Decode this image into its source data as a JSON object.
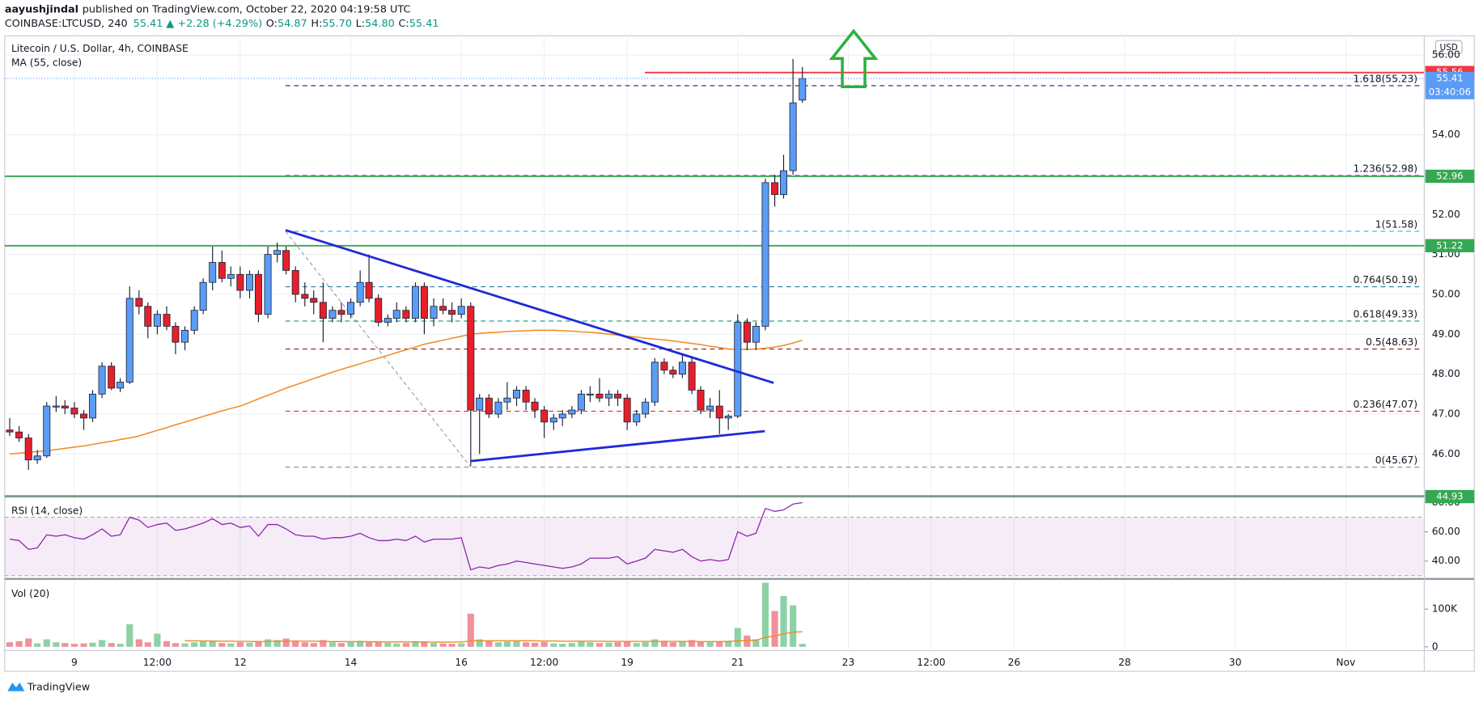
{
  "header": {
    "author": "aayushjindal",
    "published": "published on TradingView.com, October 22, 2020 04:19:58 UTC",
    "symbol": "COINBASE:LTCUSD, 240",
    "change": "55.41 ▲ +2.28 (+4.29%)",
    "ohlc": [
      "O:",
      "54.87",
      "H:",
      "55.70",
      "L:",
      "54.80",
      "C:",
      "55.41"
    ]
  },
  "footer": "TradingView",
  "chart_data": {
    "type": "candlestick",
    "title": "Litecoin / U.S. Dollar, 4h, COINBASE",
    "currency": "USD",
    "countdown": "03:40:06",
    "up_color": "#5b9cf6",
    "down_color": "#e81e2b",
    "border_color": "#1c2233",
    "grid": true,
    "xlim": [
      7.74,
      33.42
    ],
    "xticks": [
      9,
      {
        "value": 10.5,
        "label": "12:00"
      },
      12,
      14,
      16,
      {
        "value": 17.5,
        "label": "12:00"
      },
      19,
      21,
      23,
      {
        "value": 24.5,
        "label": "12:00"
      },
      26,
      28,
      30,
      {
        "value": 32,
        "label": "Nov"
      }
    ],
    "ylim": [
      44.97,
      56.48
    ],
    "yticks": [
      {
        "value": 46,
        "label": "46.00"
      },
      {
        "value": 47,
        "label": "47.00"
      },
      {
        "value": 48,
        "label": "48.00"
      },
      {
        "value": 49,
        "label": "49.00"
      },
      {
        "value": 50,
        "label": "50.00"
      },
      {
        "value": 51,
        "label": "51.00"
      },
      {
        "value": 52,
        "label": "52.00"
      },
      {
        "value": 54,
        "label": "54.00"
      },
      {
        "value": 56,
        "label": "56.00"
      }
    ],
    "x": [
      7.83,
      8,
      8.17,
      8.33,
      8.5,
      8.67,
      8.83,
      9,
      9.17,
      9.33,
      9.5,
      9.67,
      9.83,
      10,
      10.17,
      10.33,
      10.5,
      10.67,
      10.83,
      11,
      11.17,
      11.33,
      11.5,
      11.67,
      11.83,
      12,
      12.17,
      12.33,
      12.5,
      12.67,
      12.83,
      13,
      13.17,
      13.33,
      13.5,
      13.67,
      13.83,
      14,
      14.17,
      14.33,
      14.5,
      14.67,
      14.83,
      15,
      15.17,
      15.33,
      15.5,
      15.67,
      15.83,
      16,
      16.17,
      16.33,
      16.5,
      16.67,
      16.83,
      17,
      17.17,
      17.33,
      17.5,
      17.67,
      17.83,
      18,
      18.17,
      18.33,
      18.5,
      18.67,
      18.83,
      19,
      19.17,
      19.33,
      19.5,
      19.67,
      19.83,
      20,
      20.17,
      20.33,
      20.5,
      20.67,
      20.83,
      21,
      21.17,
      21.33,
      21.5,
      21.67,
      21.83,
      22,
      22.17
    ],
    "candles": [
      [
        46.6,
        46.9,
        46.45,
        46.55
      ],
      [
        46.55,
        46.7,
        46.3,
        46.4
      ],
      [
        46.4,
        46.5,
        45.6,
        45.85
      ],
      [
        45.85,
        46.1,
        45.75,
        45.95
      ],
      [
        45.95,
        47.3,
        45.9,
        47.2
      ],
      [
        47.2,
        47.45,
        47.05,
        47.2
      ],
      [
        47.2,
        47.35,
        47.0,
        47.15
      ],
      [
        47.15,
        47.3,
        46.9,
        47.0
      ],
      [
        47.0,
        47.1,
        46.6,
        46.9
      ],
      [
        46.9,
        47.6,
        46.8,
        47.5
      ],
      [
        47.5,
        48.3,
        47.4,
        48.2
      ],
      [
        48.2,
        48.3,
        47.6,
        47.65
      ],
      [
        47.65,
        47.9,
        47.55,
        47.8
      ],
      [
        47.8,
        50.2,
        47.75,
        49.9
      ],
      [
        49.9,
        50.1,
        49.5,
        49.7
      ],
      [
        49.7,
        49.8,
        48.9,
        49.2
      ],
      [
        49.2,
        49.6,
        49.0,
        49.5
      ],
      [
        49.5,
        49.7,
        49.1,
        49.2
      ],
      [
        49.2,
        49.3,
        48.5,
        48.8
      ],
      [
        48.8,
        49.2,
        48.6,
        49.1
      ],
      [
        49.1,
        49.7,
        49.0,
        49.6
      ],
      [
        49.6,
        50.4,
        49.5,
        50.3
      ],
      [
        50.3,
        51.2,
        50.1,
        50.8
      ],
      [
        50.8,
        51.1,
        50.3,
        50.4
      ],
      [
        50.4,
        50.7,
        50.2,
        50.5
      ],
      [
        50.5,
        50.7,
        49.9,
        50.1
      ],
      [
        50.1,
        50.6,
        49.9,
        50.5
      ],
      [
        50.5,
        50.6,
        49.3,
        49.5
      ],
      [
        49.5,
        51.2,
        49.4,
        51.0
      ],
      [
        51.0,
        51.3,
        50.8,
        51.1
      ],
      [
        51.1,
        51.2,
        50.5,
        50.6
      ],
      [
        50.6,
        50.7,
        49.8,
        50.0
      ],
      [
        50.0,
        50.3,
        49.7,
        49.9
      ],
      [
        49.9,
        50.1,
        49.5,
        49.8
      ],
      [
        49.8,
        50.3,
        48.8,
        49.4
      ],
      [
        49.4,
        49.7,
        49.3,
        49.6
      ],
      [
        49.6,
        49.8,
        49.3,
        49.5
      ],
      [
        49.5,
        49.9,
        49.4,
        49.8
      ],
      [
        49.8,
        50.6,
        49.7,
        50.3
      ],
      [
        50.3,
        51.0,
        49.8,
        49.9
      ],
      [
        49.9,
        50.0,
        49.2,
        49.3
      ],
      [
        49.3,
        49.5,
        49.2,
        49.4
      ],
      [
        49.4,
        49.8,
        49.3,
        49.6
      ],
      [
        49.6,
        49.7,
        49.3,
        49.4
      ],
      [
        49.4,
        50.3,
        49.3,
        50.2
      ],
      [
        50.2,
        50.3,
        49.0,
        49.4
      ],
      [
        49.4,
        49.9,
        49.2,
        49.7
      ],
      [
        49.7,
        49.9,
        49.5,
        49.6
      ],
      [
        49.6,
        49.8,
        49.3,
        49.5
      ],
      [
        49.5,
        49.9,
        49.4,
        49.7
      ],
      [
        49.7,
        49.8,
        45.7,
        47.1
      ],
      [
        47.1,
        47.5,
        46.0,
        47.4
      ],
      [
        47.4,
        47.5,
        46.9,
        47.0
      ],
      [
        47.0,
        47.4,
        46.9,
        47.3
      ],
      [
        47.3,
        47.8,
        47.1,
        47.4
      ],
      [
        47.4,
        47.7,
        47.2,
        47.6
      ],
      [
        47.6,
        47.7,
        47.1,
        47.3
      ],
      [
        47.3,
        47.4,
        46.9,
        47.1
      ],
      [
        47.1,
        47.2,
        46.4,
        46.8
      ],
      [
        46.8,
        47.0,
        46.6,
        46.9
      ],
      [
        46.9,
        47.1,
        46.7,
        47.0
      ],
      [
        47.0,
        47.2,
        46.9,
        47.1
      ],
      [
        47.1,
        47.6,
        47.0,
        47.5
      ],
      [
        47.5,
        47.7,
        47.3,
        47.5
      ],
      [
        47.5,
        47.9,
        47.3,
        47.4
      ],
      [
        47.4,
        47.6,
        47.2,
        47.5
      ],
      [
        47.5,
        47.6,
        47.2,
        47.4
      ],
      [
        47.4,
        47.5,
        46.6,
        46.8
      ],
      [
        46.8,
        47.1,
        46.7,
        47.0
      ],
      [
        47.0,
        47.4,
        46.9,
        47.3
      ],
      [
        47.3,
        48.4,
        47.2,
        48.3
      ],
      [
        48.3,
        48.4,
        48.0,
        48.1
      ],
      [
        48.1,
        48.2,
        47.9,
        48.0
      ],
      [
        48.0,
        48.5,
        47.9,
        48.3
      ],
      [
        48.3,
        48.4,
        47.5,
        47.6
      ],
      [
        47.6,
        47.7,
        47.0,
        47.1
      ],
      [
        47.1,
        47.4,
        46.9,
        47.2
      ],
      [
        47.2,
        47.6,
        46.5,
        46.9
      ],
      [
        46.9,
        47.0,
        46.6,
        46.95
      ],
      [
        46.95,
        49.5,
        46.9,
        49.3
      ],
      [
        49.3,
        49.4,
        48.6,
        48.8
      ],
      [
        48.8,
        49.3,
        48.6,
        49.2
      ],
      [
        49.2,
        52.9,
        49.1,
        52.8
      ],
      [
        52.8,
        53.0,
        52.2,
        52.5
      ],
      [
        52.5,
        53.5,
        52.4,
        53.1
      ],
      [
        53.1,
        55.9,
        53.0,
        54.8
      ],
      [
        54.87,
        55.7,
        54.8,
        55.41
      ]
    ],
    "ma": {
      "name": "MA (55, close)",
      "color": "#f08a24",
      "values": [
        46.0,
        46.02,
        46.04,
        46.06,
        46.08,
        46.11,
        46.14,
        46.17,
        46.2,
        46.24,
        46.28,
        46.32,
        46.36,
        46.4,
        46.45,
        46.52,
        46.59,
        46.66,
        46.73,
        46.8,
        46.87,
        46.94,
        47.01,
        47.08,
        47.14,
        47.2,
        47.29,
        47.38,
        47.47,
        47.56,
        47.65,
        47.73,
        47.81,
        47.89,
        47.97,
        48.05,
        48.12,
        48.19,
        48.26,
        48.33,
        48.4,
        48.47,
        48.54,
        48.61,
        48.68,
        48.75,
        48.8,
        48.85,
        48.9,
        48.95,
        49.0,
        49.02,
        49.04,
        49.05,
        49.07,
        49.08,
        49.09,
        49.1,
        49.1,
        49.1,
        49.09,
        49.08,
        49.06,
        49.05,
        49.03,
        49.0,
        48.98,
        48.95,
        48.93,
        48.9,
        48.88,
        48.86,
        48.83,
        48.8,
        48.77,
        48.74,
        48.7,
        48.67,
        48.63,
        48.62,
        48.62,
        48.63,
        48.65,
        48.68,
        48.72,
        48.78,
        48.85
      ]
    },
    "levels": [
      {
        "price": 55.56,
        "label": "55.56",
        "color": "#f23645",
        "start": 19.32
      },
      {
        "price": 52.96,
        "label": "52.96",
        "color": "#34a853"
      },
      {
        "price": 51.22,
        "label": "51.22",
        "color": "#34a853"
      },
      {
        "price": 44.93,
        "label": "44.93",
        "color": "#34a853"
      }
    ],
    "fib": {
      "x": [
        12.82,
        16.17
      ],
      "y": [
        51.58,
        45.67
      ],
      "end": 33.35,
      "levels": [
        {
          "price": 55.23,
          "label": "1.618(55.23)",
          "color": "#1a237e"
        },
        {
          "price": 52.98,
          "label": "1.236(52.98)",
          "color": "#9c27b0"
        },
        {
          "price": 51.58,
          "label": "1(51.58)",
          "color": "#4fb3e8"
        },
        {
          "price": 50.19,
          "label": "0.764(50.19)",
          "color": "#1f7fb0"
        },
        {
          "price": 49.33,
          "label": "0.618(49.33)",
          "color": "#22a58a"
        },
        {
          "price": 48.63,
          "label": "0.5(48.63)",
          "color": "#8b1a1a"
        },
        {
          "price": 47.07,
          "label": "0.236(47.07)",
          "color": "#e53935"
        },
        {
          "price": 45.67,
          "label": "0(45.67)",
          "color": "#8a8a8a"
        }
      ]
    },
    "trendlines": {
      "color": "#1f2ad6",
      "lines": [
        {
          "x": [
            12.82,
            21.65
          ],
          "y": [
            51.61,
            47.78
          ]
        },
        {
          "x": [
            16.17,
            21.49
          ],
          "y": [
            45.82,
            46.57
          ]
        }
      ]
    },
    "rsi": {
      "name": "RSI (14, close)",
      "color": "#8e24aa",
      "band": [
        30,
        70
      ],
      "band_color": "#9c27b0",
      "ylim": [
        28.4,
        83.9
      ],
      "yticks": [
        {
          "value": 40,
          "label": "40.00"
        },
        {
          "value": 60,
          "label": "60.00"
        },
        {
          "value": 80,
          "label": "80.00"
        }
      ],
      "values": [
        55,
        54,
        48,
        49,
        58,
        57,
        58,
        56,
        55,
        58,
        62,
        57,
        58,
        70,
        68,
        63,
        65,
        66,
        61,
        62,
        64,
        66,
        69,
        65,
        66,
        63,
        64,
        57,
        65,
        65,
        62,
        58,
        57,
        57,
        55,
        56,
        56,
        57,
        59,
        56,
        54,
        54,
        55,
        54,
        57,
        53,
        55,
        55,
        55,
        56,
        34,
        36,
        35,
        37,
        38,
        40,
        39,
        38,
        37,
        36,
        35,
        36,
        38,
        42,
        42,
        42,
        43,
        38,
        40,
        42,
        48,
        47,
        46,
        48,
        43,
        40,
        41,
        40,
        41,
        60,
        57,
        59,
        76,
        74,
        75,
        79,
        80
      ]
    },
    "volume": {
      "name": "Vol (20)",
      "up_color": "#8fd1a6",
      "down_color": "#f0919b",
      "ma_color": "#f08a24",
      "ylim": [
        -10000,
        177500
      ],
      "yticks": [
        0,
        {
          "value": 100000,
          "label": "100K"
        }
      ],
      "values": [
        12000,
        15000,
        22000,
        9000,
        20000,
        12000,
        10000,
        8000,
        9000,
        11000,
        18000,
        10000,
        8000,
        60000,
        20000,
        12000,
        35000,
        15000,
        10000,
        9000,
        12000,
        14000,
        16000,
        10000,
        9000,
        12000,
        11000,
        15000,
        20000,
        18000,
        22000,
        14000,
        12000,
        10000,
        18000,
        12000,
        10000,
        13000,
        16000,
        12000,
        14000,
        11000,
        9000,
        10000,
        15000,
        14000,
        10000,
        9000,
        8000,
        9000,
        88000,
        20000,
        15000,
        12000,
        14000,
        16000,
        12000,
        11000,
        13000,
        9000,
        8000,
        10000,
        14000,
        12000,
        10000,
        11000,
        12000,
        15000,
        10000,
        12000,
        20000,
        16000,
        12000,
        14000,
        18000,
        14000,
        12000,
        13000,
        16000,
        50000,
        30000,
        20000,
        170000,
        95000,
        135000,
        110000,
        8000
      ],
      "ma": [
        null,
        null,
        null,
        null,
        null,
        null,
        null,
        null,
        null,
        null,
        null,
        null,
        null,
        null,
        null,
        null,
        null,
        null,
        null,
        16000,
        16000,
        15500,
        15500,
        15000,
        15000,
        14500,
        14500,
        14000,
        14500,
        15000,
        15000,
        15500,
        15000,
        15000,
        14500,
        14000,
        14000,
        14000,
        14000,
        13500,
        13500,
        13000,
        13000,
        13000,
        13000,
        13000,
        12500,
        12500,
        12500,
        12500,
        16000,
        16000,
        16000,
        16000,
        16000,
        16000,
        16000,
        16000,
        15500,
        15500,
        15000,
        15000,
        15000,
        15000,
        15000,
        14500,
        14500,
        14500,
        14500,
        14500,
        14500,
        14500,
        14500,
        14500,
        14500,
        14000,
        14000,
        14000,
        14500,
        16000,
        17000,
        17500,
        25000,
        29000,
        34000,
        39000,
        40000
      ]
    }
  }
}
